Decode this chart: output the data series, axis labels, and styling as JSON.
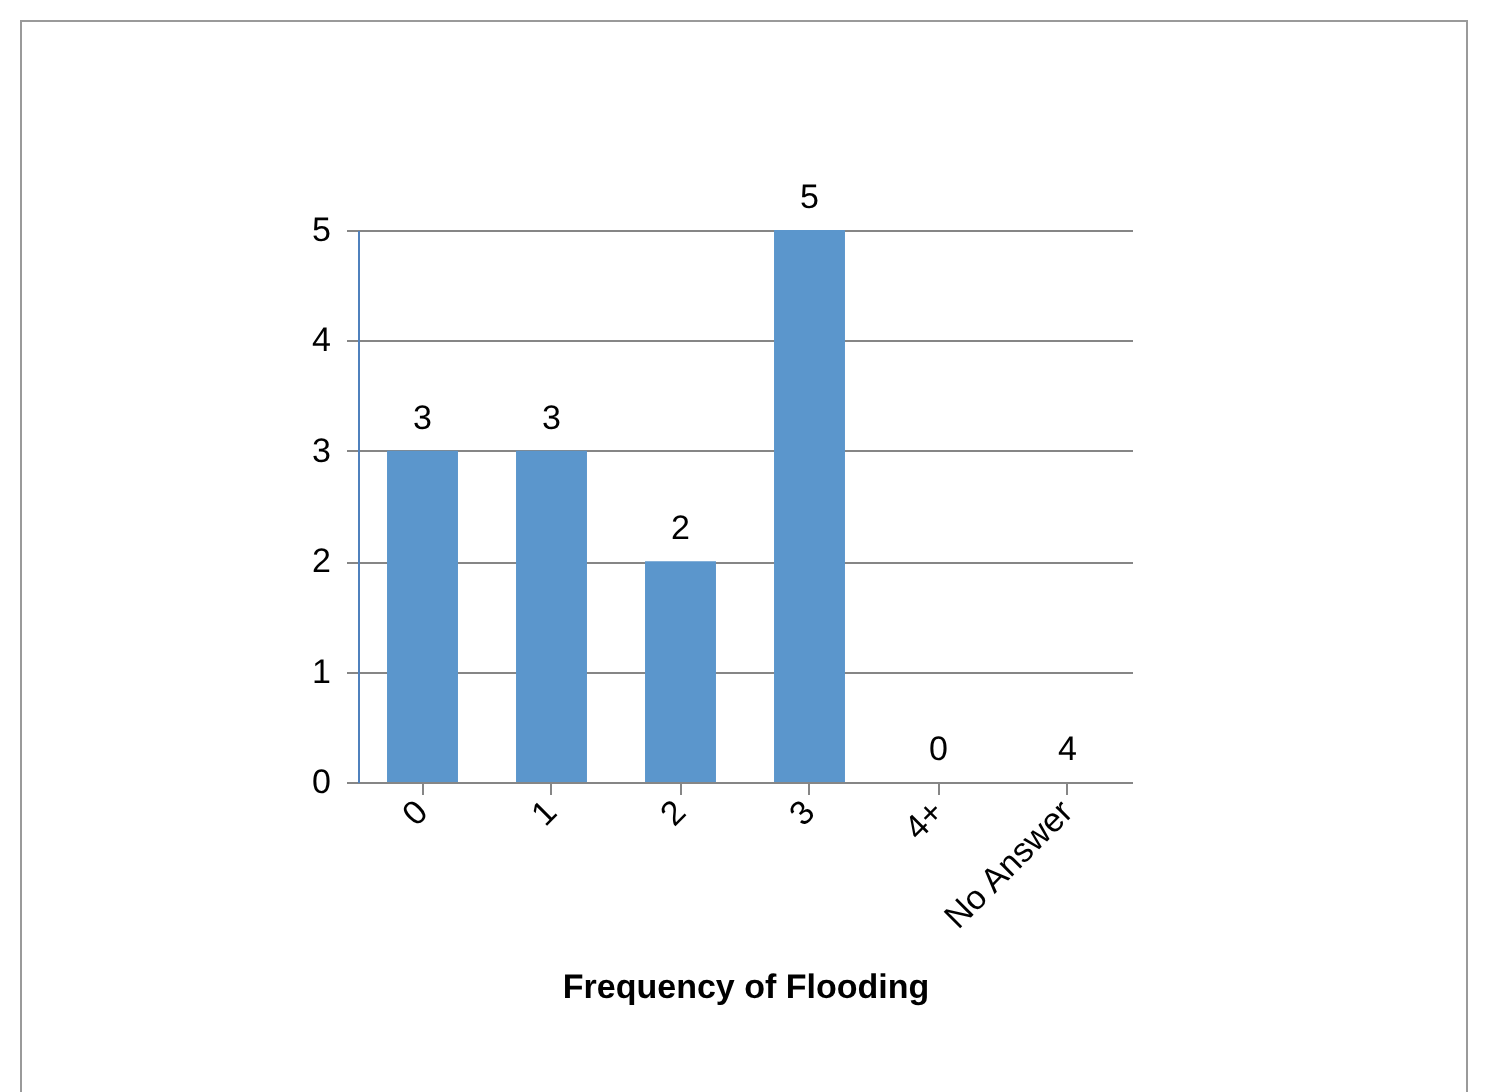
{
  "chart_data": {
    "type": "bar",
    "xlabel": "Frequency of Flooding",
    "categories": [
      "0",
      "1",
      "2",
      "3",
      "4+",
      "No Answer"
    ],
    "values": [
      3,
      3,
      2,
      5,
      0,
      null
    ],
    "value_labels": [
      "3",
      "3",
      "2",
      "5",
      "0",
      "4"
    ],
    "color": "#5b96cc",
    "ylim": [
      0,
      5
    ],
    "yticks": [
      0,
      1,
      2,
      3,
      4,
      5
    ],
    "grid": "y"
  }
}
